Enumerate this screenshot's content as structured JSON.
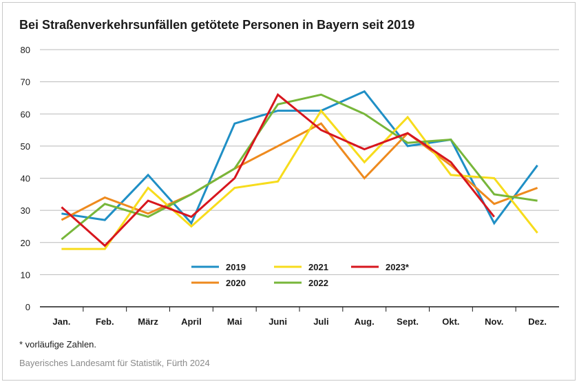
{
  "chart_data": {
    "type": "line",
    "title": "Bei Straßenverkehrsunfällen getötete Personen in Bayern seit 2019",
    "xlabel": "",
    "ylabel": "",
    "ylim": [
      0,
      80
    ],
    "yticks": [
      0,
      10,
      20,
      30,
      40,
      50,
      60,
      70,
      80
    ],
    "grid": true,
    "legend_position": "center-bottom (inside plot)",
    "categories": [
      "Jan.",
      "Feb.",
      "März",
      "April",
      "Mai",
      "Juni",
      "Juli",
      "Aug.",
      "Sept.",
      "Okt.",
      "Nov.",
      "Dez."
    ],
    "series": [
      {
        "name": "2019",
        "color": "#1f8fc5",
        "values": [
          29,
          27,
          41,
          26,
          57,
          61,
          61,
          67,
          50,
          52,
          26,
          44
        ]
      },
      {
        "name": "2020",
        "color": "#ee8a1e",
        "values": [
          27,
          34,
          29,
          35,
          43,
          50,
          57,
          40,
          54,
          44,
          32,
          37
        ]
      },
      {
        "name": "2021",
        "color": "#f7dc1c",
        "values": [
          18,
          18,
          37,
          25,
          37,
          39,
          61,
          45,
          59,
          41,
          40,
          23
        ]
      },
      {
        "name": "2022",
        "color": "#77b63a",
        "values": [
          21,
          32,
          28,
          35,
          43,
          63,
          66,
          60,
          51,
          52,
          35,
          33
        ]
      },
      {
        "name": "2023*",
        "color": "#d7161e",
        "values": [
          31,
          19,
          33,
          28,
          40,
          66,
          55,
          49,
          54,
          45,
          28,
          null
        ]
      }
    ]
  },
  "footnote": "* vorläufige Zahlen.",
  "source": "Bayerisches Landesamt für Statistik, Fürth 2024"
}
